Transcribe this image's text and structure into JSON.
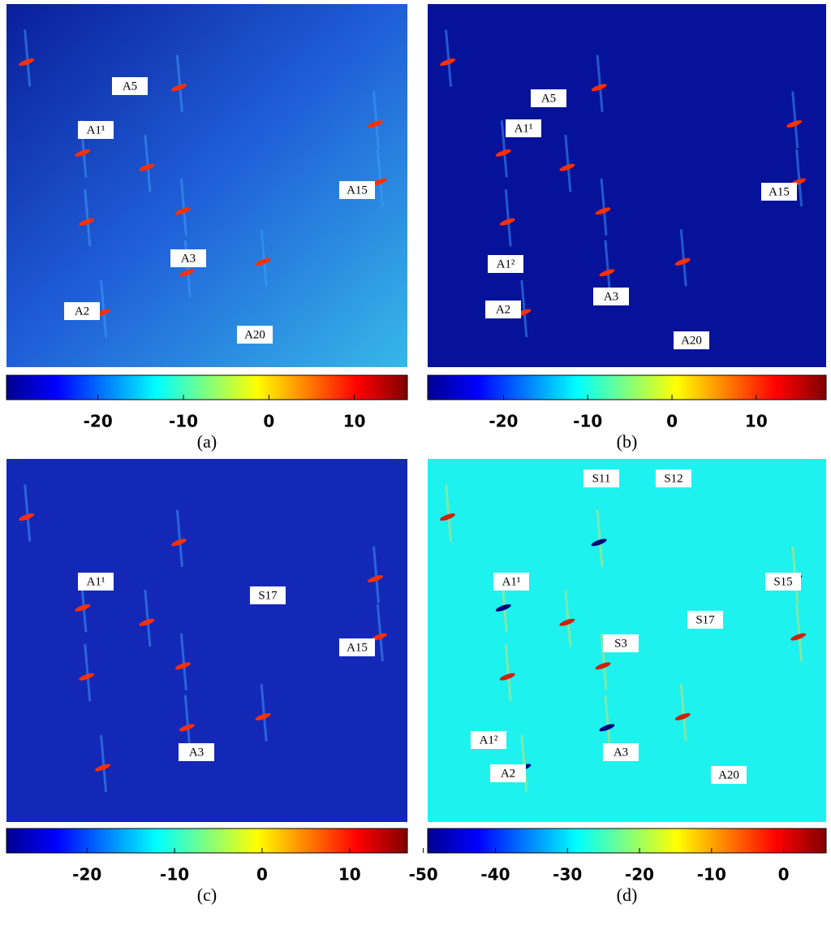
{
  "panels": [
    {
      "labels": [
        "A5",
        "A1¹",
        "A15",
        "A3",
        "A2",
        "A20"
      ],
      "colorbar": {
        "lim": [
          -30.7,
          16.2
        ],
        "ticks": [
          -20,
          -10,
          0,
          10
        ]
      },
      "caption": "(a)"
    },
    {
      "labels": [
        "A5",
        "A1¹",
        "A15",
        "A1²",
        "A3",
        "A2",
        "A20"
      ],
      "colorbar": {
        "lim": [
          -29.0,
          18.3
        ],
        "ticks": [
          -20,
          -10,
          0,
          10
        ]
      },
      "caption": "(b)"
    },
    {
      "labels": [
        "A1¹",
        "S17",
        "A15",
        "A3"
      ],
      "colorbar": {
        "lim": [
          -29.2,
          16.6
        ],
        "ticks": [
          -20,
          -10,
          0,
          10
        ]
      },
      "caption": "(c)"
    },
    {
      "labels": [
        "S11",
        "S12",
        "A1¹",
        "S15",
        "S17",
        "S3",
        "A1²",
        "A3",
        "A2",
        "A20"
      ],
      "colorbar": {
        "lim": [
          -49.4,
          5.9
        ],
        "ticks": [
          -50,
          -40,
          -30,
          -20,
          -10,
          0
        ]
      },
      "caption": "(d)"
    }
  ]
}
